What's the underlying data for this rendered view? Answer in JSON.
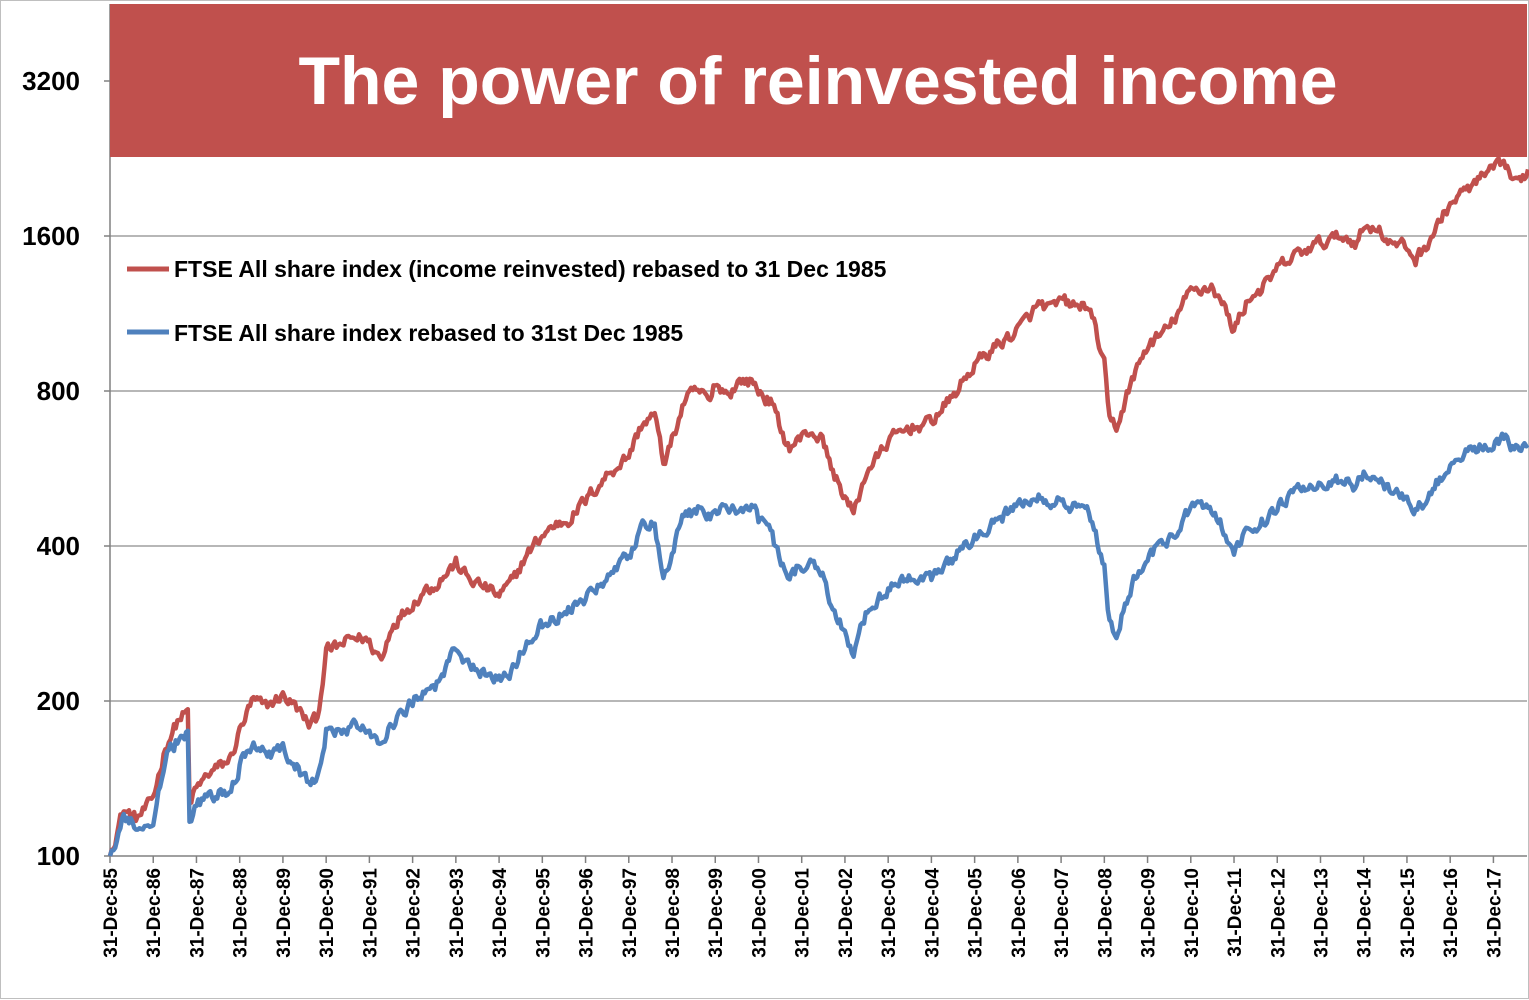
{
  "chart_data": {
    "type": "line",
    "title": "The power of reinvested income",
    "title_bg": "#c0504d",
    "xlabel": "",
    "ylabel": "",
    "yscale": "log2",
    "ylim": [
      100,
      4000
    ],
    "yticks": [
      100,
      200,
      400,
      800,
      1600,
      3200
    ],
    "grid": true,
    "legend": "top-left",
    "categories": [
      "31-Dec-85",
      "31-Dec-86",
      "31-Dec-87",
      "31-Dec-88",
      "31-Dec-89",
      "31-Dec-90",
      "31-Dec-91",
      "31-Dec-92",
      "31-Dec-93",
      "31-Dec-94",
      "31-Dec-95",
      "31-Dec-96",
      "31-Dec-97",
      "31-Dec-98",
      "31-Dec-99",
      "31-Dec-00",
      "31-Dec-01",
      "31-Dec-02",
      "31-Dec-03",
      "31-Dec-04",
      "31-Dec-05",
      "31-Dec-06",
      "31-Dec-07",
      "31-Dec-08",
      "31-Dec-09",
      "31-Dec-10",
      "31-Dec-11",
      "31-Dec-12",
      "31-Dec-13",
      "31-Dec-14",
      "31-Dec-15",
      "31-Dec-16",
      "31-Dec-17"
    ],
    "x_end": 32.8,
    "series": [
      {
        "name": "FTSE All share index (income reinvested) rebased to 31 Dec 1985",
        "color": "#c0504d",
        "points": [
          [
            0,
            100
          ],
          [
            0.3,
            123
          ],
          [
            0.6,
            118
          ],
          [
            0.9,
            125
          ],
          [
            1.0,
            130
          ],
          [
            1.3,
            165
          ],
          [
            1.6,
            185
          ],
          [
            1.8,
            190
          ],
          [
            1.82,
            125
          ],
          [
            2.0,
            135
          ],
          [
            2.3,
            145
          ],
          [
            2.6,
            150
          ],
          [
            2.8,
            155
          ],
          [
            3.0,
            175
          ],
          [
            3.3,
            200
          ],
          [
            3.6,
            195
          ],
          [
            4.0,
            205
          ],
          [
            4.3,
            195
          ],
          [
            4.6,
            180
          ],
          [
            4.8,
            185
          ],
          [
            5.0,
            250
          ],
          [
            5.3,
            255
          ],
          [
            5.6,
            265
          ],
          [
            5.9,
            265
          ],
          [
            6.3,
            240
          ],
          [
            6.5,
            280
          ],
          [
            7.0,
            310
          ],
          [
            7.3,
            330
          ],
          [
            7.5,
            335
          ],
          [
            8.0,
            370
          ],
          [
            8.3,
            345
          ],
          [
            8.6,
            335
          ],
          [
            9.0,
            320
          ],
          [
            9.3,
            340
          ],
          [
            9.6,
            380
          ],
          [
            10.0,
            420
          ],
          [
            10.3,
            440
          ],
          [
            10.6,
            450
          ],
          [
            11.0,
            490
          ],
          [
            11.5,
            550
          ],
          [
            12.0,
            600
          ],
          [
            12.3,
            690
          ],
          [
            12.6,
            720
          ],
          [
            12.8,
            580
          ],
          [
            13.0,
            640
          ],
          [
            13.3,
            770
          ],
          [
            13.6,
            800
          ],
          [
            13.9,
            760
          ],
          [
            14.0,
            830
          ],
          [
            14.3,
            790
          ],
          [
            14.6,
            840
          ],
          [
            14.9,
            830
          ],
          [
            15.0,
            800
          ],
          [
            15.3,
            760
          ],
          [
            15.5,
            680
          ],
          [
            15.7,
            620
          ],
          [
            15.9,
            640
          ],
          [
            16.2,
            670
          ],
          [
            16.5,
            640
          ],
          [
            16.7,
            560
          ],
          [
            17.0,
            500
          ],
          [
            17.2,
            460
          ],
          [
            17.5,
            560
          ],
          [
            17.8,
            600
          ],
          [
            18.0,
            640
          ],
          [
            18.5,
            680
          ],
          [
            18.9,
            690
          ],
          [
            19.0,
            700
          ],
          [
            19.5,
            780
          ],
          [
            20.0,
            900
          ],
          [
            20.5,
            980
          ],
          [
            20.8,
            1020
          ],
          [
            21.0,
            1050
          ],
          [
            21.5,
            1180
          ],
          [
            21.8,
            1150
          ],
          [
            22.0,
            1200
          ],
          [
            22.4,
            1160
          ],
          [
            22.6,
            1180
          ],
          [
            22.8,
            1050
          ],
          [
            23.0,
            900
          ],
          [
            23.1,
            700
          ],
          [
            23.3,
            680
          ],
          [
            23.5,
            780
          ],
          [
            23.8,
            900
          ],
          [
            24.0,
            980
          ],
          [
            24.5,
            1060
          ],
          [
            25.0,
            1250
          ],
          [
            25.5,
            1280
          ],
          [
            25.8,
            1150
          ],
          [
            26.0,
            1050
          ],
          [
            26.3,
            1200
          ],
          [
            26.8,
            1300
          ],
          [
            27.0,
            1380
          ],
          [
            27.5,
            1480
          ],
          [
            28.0,
            1550
          ],
          [
            28.5,
            1600
          ],
          [
            28.8,
            1560
          ],
          [
            29.0,
            1650
          ],
          [
            29.3,
            1680
          ],
          [
            29.6,
            1550
          ],
          [
            30.0,
            1520
          ],
          [
            30.2,
            1440
          ],
          [
            30.5,
            1560
          ],
          [
            31.0,
            1850
          ],
          [
            31.5,
            2000
          ],
          [
            32.0,
            2150
          ],
          [
            32.3,
            2200
          ],
          [
            32.5,
            2000
          ],
          [
            32.8,
            2150
          ]
        ]
      },
      {
        "name": "FTSE All share index rebased to 31st Dec 1985",
        "color": "#4f81bd",
        "points": [
          [
            0,
            100
          ],
          [
            0.3,
            120
          ],
          [
            0.6,
            114
          ],
          [
            0.9,
            118
          ],
          [
            1.0,
            120
          ],
          [
            1.3,
            155
          ],
          [
            1.6,
            170
          ],
          [
            1.8,
            175
          ],
          [
            1.82,
            118
          ],
          [
            2.0,
            125
          ],
          [
            2.3,
            130
          ],
          [
            2.6,
            133
          ],
          [
            2.8,
            135
          ],
          [
            3.0,
            150
          ],
          [
            3.3,
            165
          ],
          [
            3.6,
            158
          ],
          [
            4.0,
            160
          ],
          [
            4.3,
            150
          ],
          [
            4.6,
            138
          ],
          [
            4.8,
            140
          ],
          [
            5.0,
            175
          ],
          [
            5.3,
            175
          ],
          [
            5.6,
            178
          ],
          [
            5.9,
            178
          ],
          [
            6.3,
            162
          ],
          [
            6.5,
            180
          ],
          [
            7.0,
            200
          ],
          [
            7.3,
            210
          ],
          [
            7.5,
            212
          ],
          [
            8.0,
            255
          ],
          [
            8.3,
            235
          ],
          [
            8.6,
            228
          ],
          [
            9.0,
            220
          ],
          [
            9.3,
            230
          ],
          [
            9.6,
            258
          ],
          [
            10.0,
            280
          ],
          [
            10.3,
            290
          ],
          [
            10.6,
            298
          ],
          [
            11.0,
            318
          ],
          [
            11.5,
            350
          ],
          [
            12.0,
            380
          ],
          [
            12.3,
            430
          ],
          [
            12.6,
            440
          ],
          [
            12.8,
            350
          ],
          [
            13.0,
            390
          ],
          [
            13.3,
            460
          ],
          [
            13.6,
            470
          ],
          [
            13.9,
            450
          ],
          [
            14.0,
            480
          ],
          [
            14.3,
            460
          ],
          [
            14.6,
            480
          ],
          [
            14.9,
            470
          ],
          [
            15.0,
            450
          ],
          [
            15.3,
            420
          ],
          [
            15.5,
            375
          ],
          [
            15.7,
            345
          ],
          [
            15.9,
            360
          ],
          [
            16.2,
            365
          ],
          [
            16.5,
            350
          ],
          [
            16.7,
            305
          ],
          [
            17.0,
            270
          ],
          [
            17.2,
            250
          ],
          [
            17.5,
            300
          ],
          [
            17.8,
            320
          ],
          [
            18.0,
            330
          ],
          [
            18.5,
            345
          ],
          [
            18.9,
            342
          ],
          [
            19.0,
            345
          ],
          [
            19.5,
            375
          ],
          [
            20.0,
            420
          ],
          [
            20.5,
            450
          ],
          [
            20.8,
            465
          ],
          [
            21.0,
            480
          ],
          [
            21.5,
            500
          ],
          [
            21.8,
            480
          ],
          [
            22.0,
            490
          ],
          [
            22.4,
            470
          ],
          [
            22.6,
            475
          ],
          [
            22.8,
            420
          ],
          [
            23.0,
            360
          ],
          [
            23.1,
            280
          ],
          [
            23.3,
            270
          ],
          [
            23.5,
            310
          ],
          [
            23.8,
            360
          ],
          [
            24.0,
            385
          ],
          [
            24.5,
            410
          ],
          [
            25.0,
            470
          ],
          [
            25.5,
            475
          ],
          [
            25.8,
            425
          ],
          [
            26.0,
            385
          ],
          [
            26.3,
            430
          ],
          [
            26.8,
            455
          ],
          [
            27.0,
            480
          ],
          [
            27.5,
            510
          ],
          [
            28.0,
            530
          ],
          [
            28.5,
            540
          ],
          [
            28.8,
            520
          ],
          [
            29.0,
            550
          ],
          [
            29.3,
            560
          ],
          [
            29.6,
            510
          ],
          [
            30.0,
            490
          ],
          [
            30.2,
            465
          ],
          [
            30.5,
            500
          ],
          [
            31.0,
            580
          ],
          [
            31.5,
            610
          ],
          [
            32.0,
            640
          ],
          [
            32.3,
            650
          ],
          [
            32.5,
            610
          ],
          [
            32.8,
            635
          ]
        ]
      }
    ]
  }
}
